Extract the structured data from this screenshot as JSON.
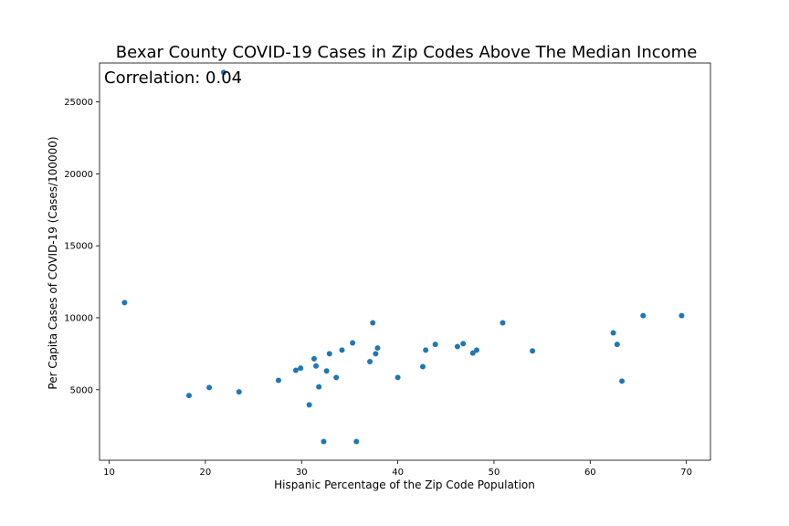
{
  "chart_data": {
    "type": "scatter",
    "title": "Bexar County COVID-19 Cases in Zip Codes Above The Median Income",
    "xlabel": "Hispanic Percentage of the Zip Code Population",
    "ylabel": "Per Capita Cases of COVID-19 (Cases/100000)",
    "annotation": "Correlation: 0.04",
    "xlim": [
      9.0,
      72.5
    ],
    "ylim": [
      100,
      27700
    ],
    "xticks": [
      10,
      20,
      30,
      40,
      50,
      60,
      70
    ],
    "yticks": [
      5000,
      10000,
      15000,
      20000,
      25000
    ],
    "grid": false,
    "marker_color": "#1f77b4",
    "points": [
      {
        "x": 11.6,
        "y": 11050
      },
      {
        "x": 18.3,
        "y": 4600
      },
      {
        "x": 20.4,
        "y": 5150
      },
      {
        "x": 21.9,
        "y": 27050
      },
      {
        "x": 23.5,
        "y": 4850
      },
      {
        "x": 27.6,
        "y": 5650
      },
      {
        "x": 29.4,
        "y": 6350
      },
      {
        "x": 29.9,
        "y": 6500
      },
      {
        "x": 30.8,
        "y": 3950
      },
      {
        "x": 31.3,
        "y": 7150
      },
      {
        "x": 31.5,
        "y": 6650
      },
      {
        "x": 31.8,
        "y": 5200
      },
      {
        "x": 32.3,
        "y": 1400
      },
      {
        "x": 32.6,
        "y": 6300
      },
      {
        "x": 32.9,
        "y": 7500
      },
      {
        "x": 33.6,
        "y": 5850
      },
      {
        "x": 34.2,
        "y": 7750
      },
      {
        "x": 35.3,
        "y": 8250
      },
      {
        "x": 35.7,
        "y": 1400
      },
      {
        "x": 37.1,
        "y": 6950
      },
      {
        "x": 37.4,
        "y": 9650
      },
      {
        "x": 37.7,
        "y": 7500
      },
      {
        "x": 37.9,
        "y": 7900
      },
      {
        "x": 40.0,
        "y": 5850
      },
      {
        "x": 42.6,
        "y": 6600
      },
      {
        "x": 42.9,
        "y": 7750
      },
      {
        "x": 43.9,
        "y": 8150
      },
      {
        "x": 46.2,
        "y": 8000
      },
      {
        "x": 46.8,
        "y": 8200
      },
      {
        "x": 47.8,
        "y": 7550
      },
      {
        "x": 48.2,
        "y": 7750
      },
      {
        "x": 50.9,
        "y": 9650
      },
      {
        "x": 54.0,
        "y": 7700
      },
      {
        "x": 62.4,
        "y": 8950
      },
      {
        "x": 62.8,
        "y": 8150
      },
      {
        "x": 63.3,
        "y": 5600
      },
      {
        "x": 65.5,
        "y": 10150
      },
      {
        "x": 69.5,
        "y": 10150
      }
    ]
  }
}
